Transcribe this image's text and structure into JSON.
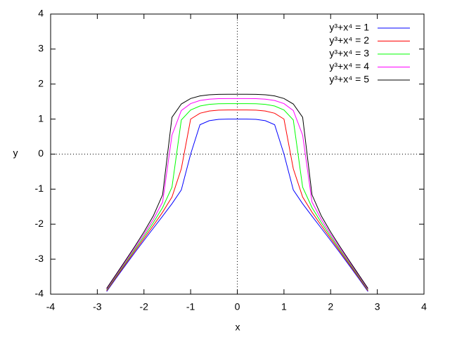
{
  "chart_data": {
    "type": "line",
    "xlabel": "x",
    "ylabel": "y",
    "x": [
      -2.8,
      -2.6,
      -2.4,
      -2.2,
      -2.0,
      -1.8,
      -1.6,
      -1.4,
      -1.2,
      -1.0,
      -0.8,
      -0.6,
      -0.4,
      -0.2,
      0,
      0.2,
      0.4,
      0.6,
      0.8,
      1.0,
      1.2,
      1.4,
      1.6,
      1.8,
      2.0,
      2.2,
      2.4,
      2.6,
      2.8
    ],
    "series": [
      {
        "name": "y³+x⁴ = 1",
        "color": "#0000ff",
        "values": [
          -3.9243,
          -3.5479,
          -3.1811,
          -2.8194,
          -2.4662,
          -2.1178,
          -1.7712,
          -1.4165,
          -1.0239,
          0,
          0.8391,
          0.9548,
          0.9914,
          0.9995,
          1,
          0.9995,
          0.9914,
          0.9548,
          0.8391,
          0,
          -1.0239,
          -1.4165,
          -1.7712,
          -2.1178,
          -2.4662,
          -2.8194,
          -3.1811,
          -3.5479,
          -3.9243
        ]
      },
      {
        "name": "y³+x⁴ = 2",
        "color": "#ff0000",
        "values": [
          -3.9024,
          -3.521,
          -3.1474,
          -2.7774,
          -2.4101,
          -2.0406,
          -1.6577,
          -1.2258,
          -0.419,
          1,
          1.1673,
          1.2314,
          1.2545,
          1.2596,
          1.2599,
          1.2596,
          1.2545,
          1.2314,
          1.1673,
          1,
          -0.419,
          -1.2258,
          -1.6577,
          -2.0406,
          -2.4101,
          -2.7774,
          -3.1474,
          -3.521,
          -3.9024
        ]
      },
      {
        "name": "y³+x⁴ = 3",
        "color": "#00ff00",
        "values": [
          -3.8803,
          -3.4941,
          -3.113,
          -2.7335,
          -2.3513,
          -1.9571,
          -1.5256,
          -0.9441,
          0.9748,
          1.2599,
          1.3737,
          1.4211,
          1.4381,
          1.442,
          1.4422,
          1.442,
          1.4381,
          1.4211,
          1.3737,
          1.2599,
          0.9748,
          -0.9441,
          -1.5256,
          -1.9571,
          -2.3513,
          -2.7335,
          -3.113,
          -3.4941,
          -3.8803
        ]
      },
      {
        "name": "y³+x⁴ = 4",
        "color": "#ff00ff",
        "values": [
          -3.8579,
          -3.4665,
          -3.078,
          -2.6882,
          -2.2894,
          -1.8665,
          -1.3666,
          0.5411,
          1.2442,
          1.4422,
          1.5311,
          1.57,
          1.584,
          1.5872,
          1.5874,
          1.5872,
          1.584,
          1.57,
          1.5311,
          1.4422,
          1.2442,
          0.5411,
          -1.3666,
          -1.8665,
          -2.2894,
          -2.6882,
          -3.078,
          -3.4665,
          -3.8579
        ]
      },
      {
        "name": "y³+x⁴ = 5",
        "color": "#000000",
        "values": [
          -3.8352,
          -3.4389,
          -3.0424,
          -2.6413,
          -2.224,
          -1.7648,
          -1.1582,
          1.0502,
          1.4305,
          1.5874,
          1.6616,
          1.6951,
          1.7071,
          1.7098,
          1.71,
          1.7098,
          1.7071,
          1.6951,
          1.6616,
          1.5874,
          1.4305,
          1.0502,
          -1.1582,
          -1.7648,
          -2.224,
          -2.6413,
          -3.0424,
          -3.4389,
          -3.8352
        ]
      }
    ],
    "xlim": [
      -4,
      4
    ],
    "ylim": [
      -4,
      4
    ],
    "xticks": [
      -4,
      -3,
      -2,
      -1,
      0,
      1,
      2,
      3,
      4
    ],
    "yticks": [
      -4,
      -3,
      -2,
      -1,
      0,
      1,
      2,
      3,
      4
    ],
    "zeroaxis": true,
    "legend": "top-right"
  }
}
